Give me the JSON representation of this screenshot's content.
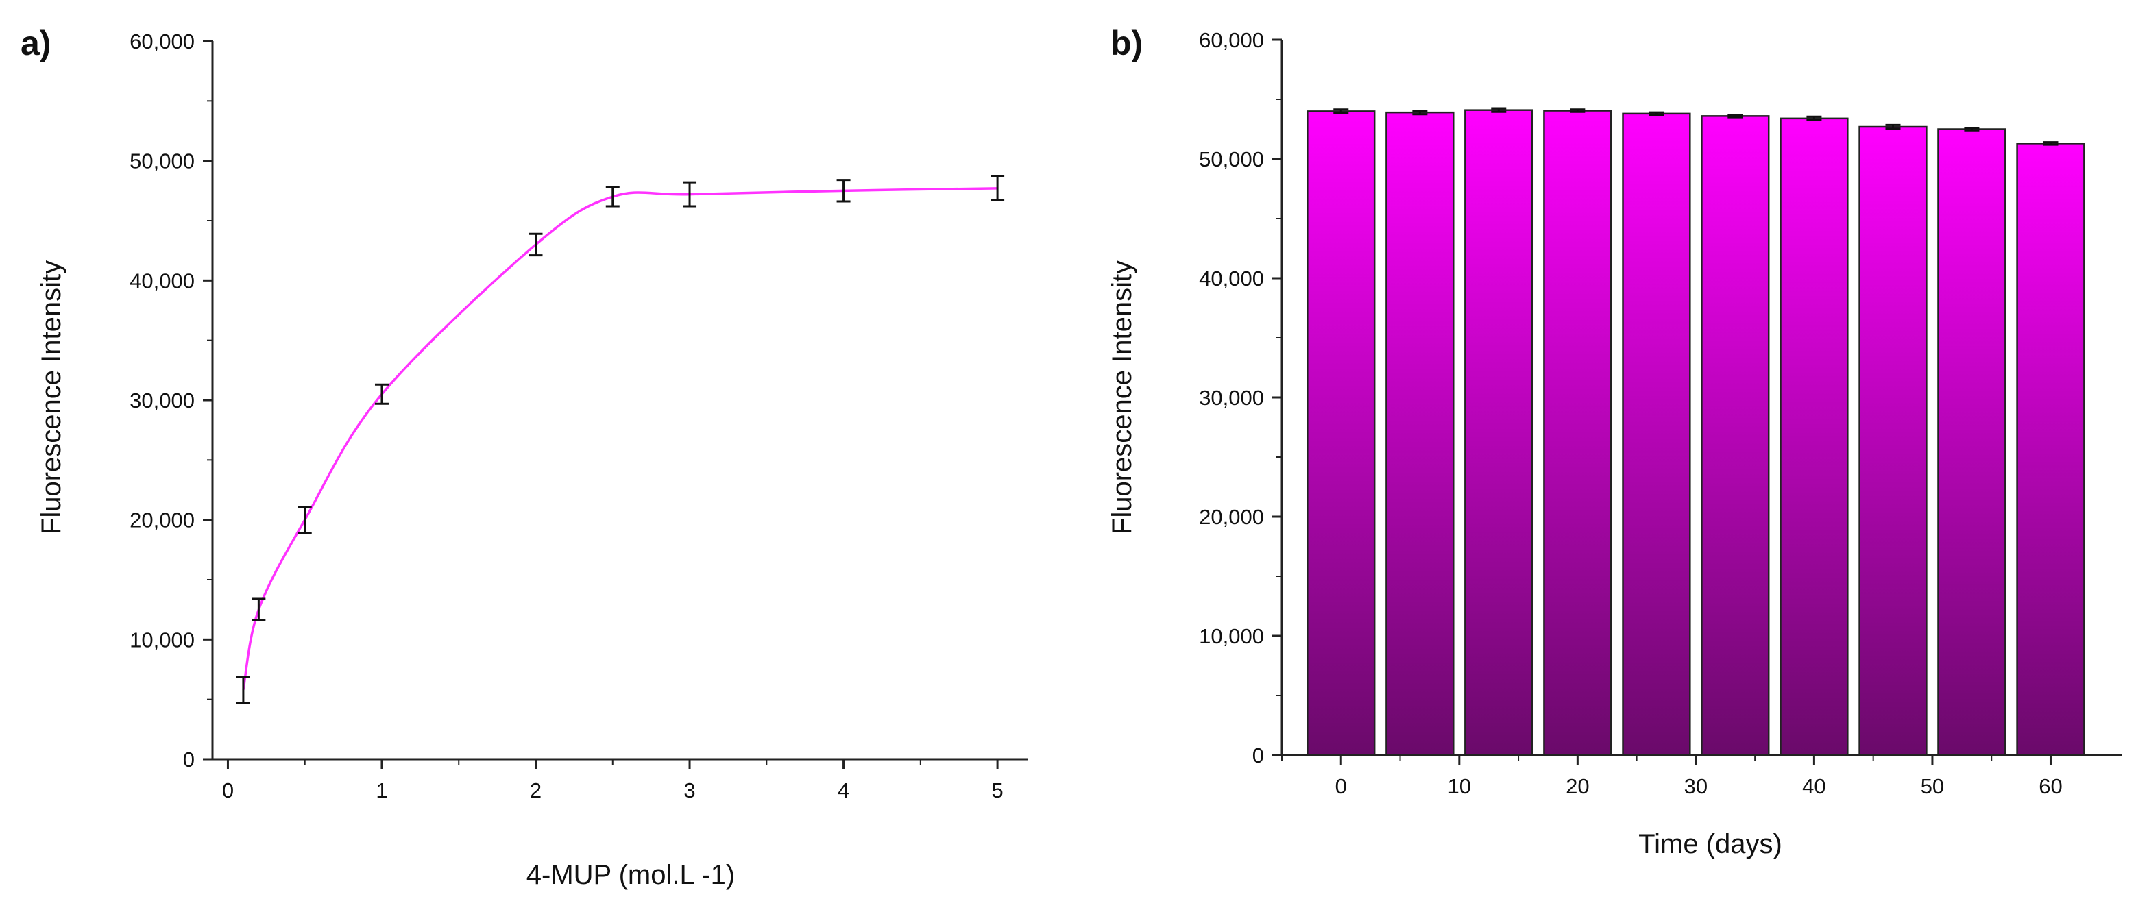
{
  "chart_data": [
    {
      "panel_label": "a)",
      "type": "line",
      "xlabel": "4-MUP (mol.L  -1)",
      "ylabel": "Fluorescence Intensity",
      "xlim": [
        -0.1,
        5.2
      ],
      "ylim": [
        0,
        60000
      ],
      "xticks": [
        "0",
        "1",
        "2",
        "3",
        "4",
        "5"
      ],
      "yticks": [
        "0",
        "10,000",
        "20,000",
        "30,000",
        "40,000",
        "50,000",
        "60,000"
      ],
      "points": [
        {
          "x": 0.1,
          "y": 5800,
          "err": 1100
        },
        {
          "x": 0.2,
          "y": 12500,
          "err": 900
        },
        {
          "x": 0.5,
          "y": 20000,
          "err": 1100
        },
        {
          "x": 1.0,
          "y": 30500,
          "err": 800
        },
        {
          "x": 2.0,
          "y": 43000,
          "err": 900
        },
        {
          "x": 2.5,
          "y": 47000,
          "err": 800
        },
        {
          "x": 3.0,
          "y": 47200,
          "err": 1000
        },
        {
          "x": 4.0,
          "y": 47500,
          "err": 900
        },
        {
          "x": 5.0,
          "y": 47700,
          "err": 1000
        }
      ],
      "line_color": "#ff33ff"
    },
    {
      "panel_label": "b)",
      "type": "bar",
      "xlabel": "Time (days)",
      "ylabel": "Fluorescence Intensity",
      "xlim": [
        -5,
        66
      ],
      "ylim": [
        0,
        60000
      ],
      "xticks": [
        "0",
        "10",
        "20",
        "30",
        "40",
        "50",
        "60"
      ],
      "yticks": [
        "0",
        "10,000",
        "20,000",
        "30,000",
        "40,000",
        "50,000",
        "60,000"
      ],
      "x": [
        0,
        6.67,
        13.33,
        20,
        26.67,
        33.33,
        40,
        46.67,
        53.33,
        60
      ],
      "values": [
        54000,
        53900,
        54100,
        54050,
        53800,
        53600,
        53400,
        52700,
        52500,
        51300
      ],
      "errors": [
        150,
        150,
        150,
        100,
        100,
        100,
        150,
        150,
        100,
        100
      ],
      "bar_color_top": "#ff00ff",
      "bar_color_bottom": "#6a0a6a"
    }
  ]
}
